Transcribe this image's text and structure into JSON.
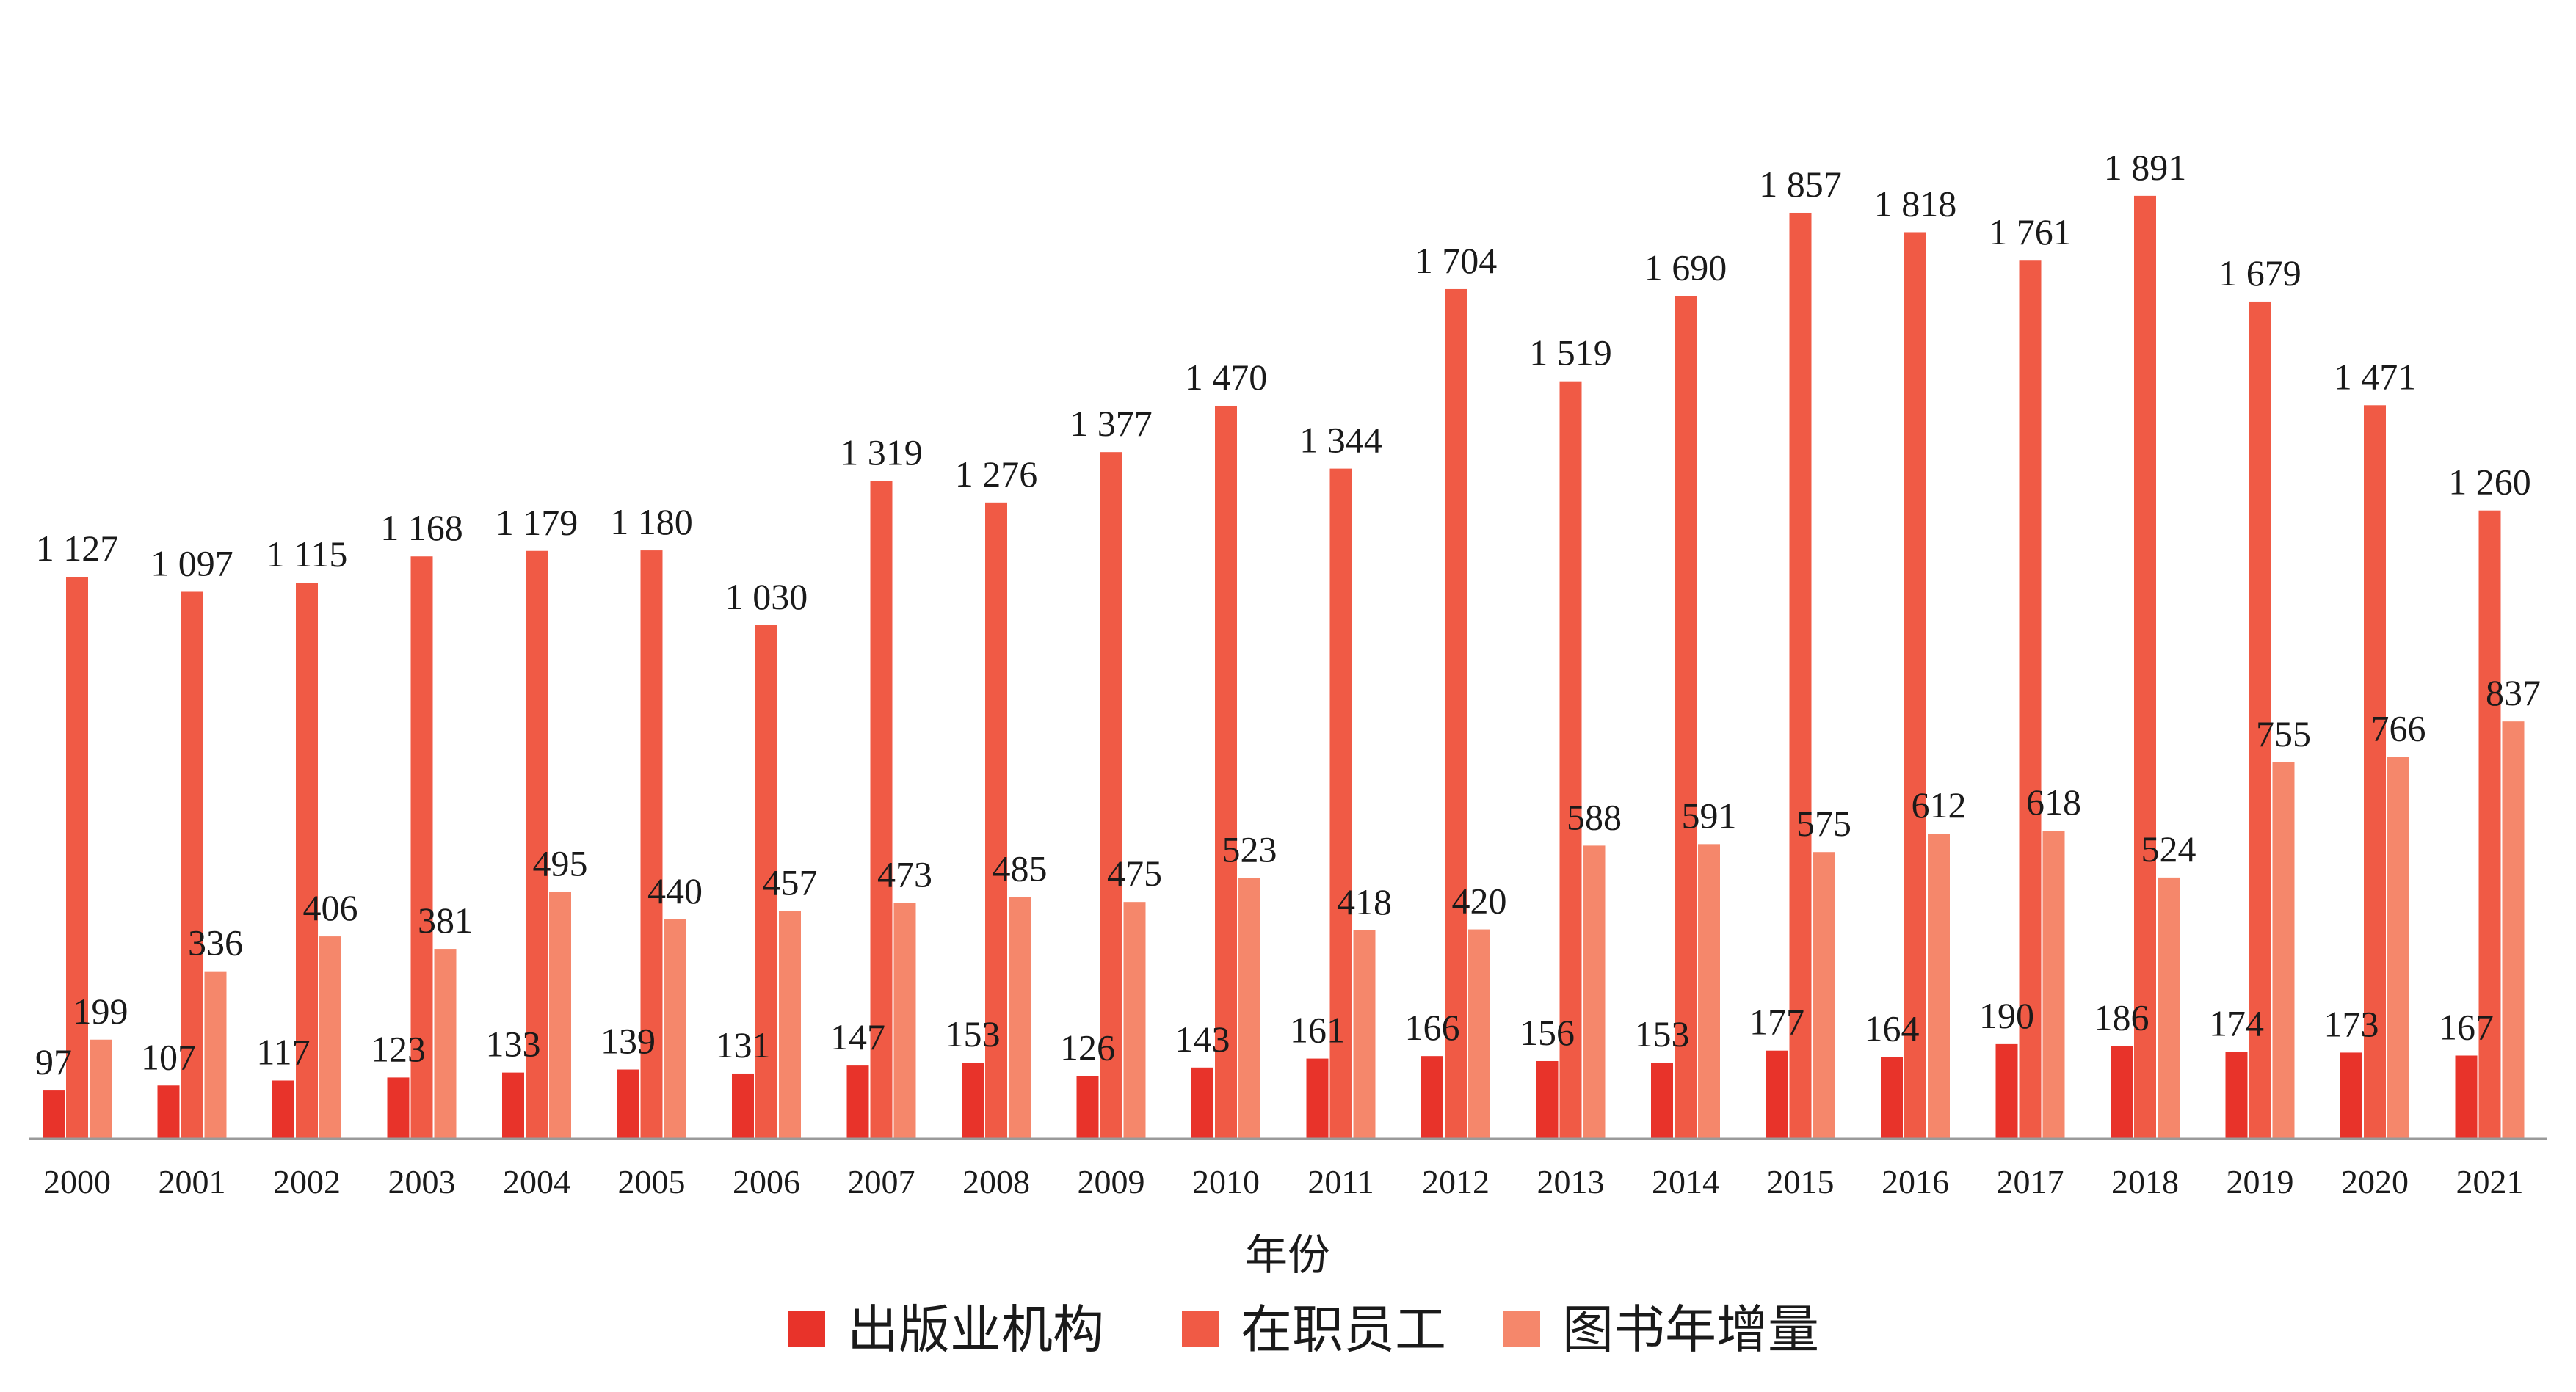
{
  "chart_data": {
    "type": "bar",
    "xlabel": "年份",
    "ylabel": "",
    "ylim": [
      0,
      1950
    ],
    "grid": false,
    "legend_position": "bottom",
    "categories": [
      "2000",
      "2001",
      "2002",
      "2003",
      "2004",
      "2005",
      "2006",
      "2007",
      "2008",
      "2009",
      "2010",
      "2011",
      "2012",
      "2013",
      "2014",
      "2015",
      "2016",
      "2017",
      "2018",
      "2019",
      "2020",
      "2021"
    ],
    "series": [
      {
        "name": "出版业机构",
        "color": "#e8332a",
        "values": [
          97,
          107,
          117,
          123,
          133,
          139,
          131,
          147,
          153,
          126,
          143,
          161,
          166,
          156,
          153,
          177,
          164,
          190,
          186,
          174,
          173,
          167
        ],
        "labels": [
          "97",
          "107",
          "117",
          "123",
          "133",
          "139",
          "131",
          "147",
          "153",
          "126",
          "143",
          "161",
          "166",
          "156",
          "153",
          "177",
          "164",
          "190",
          "186",
          "174",
          "173",
          "167"
        ]
      },
      {
        "name": "在职员工",
        "color": "#f05a45",
        "values": [
          1127,
          1097,
          1115,
          1168,
          1179,
          1180,
          1030,
          1319,
          1276,
          1377,
          1470,
          1344,
          1704,
          1519,
          1690,
          1857,
          1818,
          1761,
          1891,
          1679,
          1471,
          1260
        ],
        "labels": [
          "1 127",
          "1 097",
          "1 115",
          "1 168",
          "1 179",
          "1 180",
          "1 030",
          "1 319",
          "1 276",
          "1 377",
          "1 470",
          "1 344",
          "1 704",
          "1 519",
          "1 690",
          "1 857",
          "1 818",
          "1 761",
          "1 891",
          "1 679",
          "1 471",
          "1 260"
        ]
      },
      {
        "name": "图书年增量",
        "color": "#f5876b",
        "values": [
          199,
          336,
          406,
          381,
          495,
          440,
          457,
          473,
          485,
          475,
          523,
          418,
          420,
          588,
          591,
          575,
          612,
          618,
          524,
          755,
          766,
          837
        ],
        "labels": [
          "199",
          "336",
          "406",
          "381",
          "495",
          "440",
          "457",
          "473",
          "485",
          "475",
          "523",
          "418",
          "420",
          "588",
          "591",
          "575",
          "612",
          "618",
          "524",
          "755",
          "766",
          "837"
        ]
      }
    ]
  }
}
